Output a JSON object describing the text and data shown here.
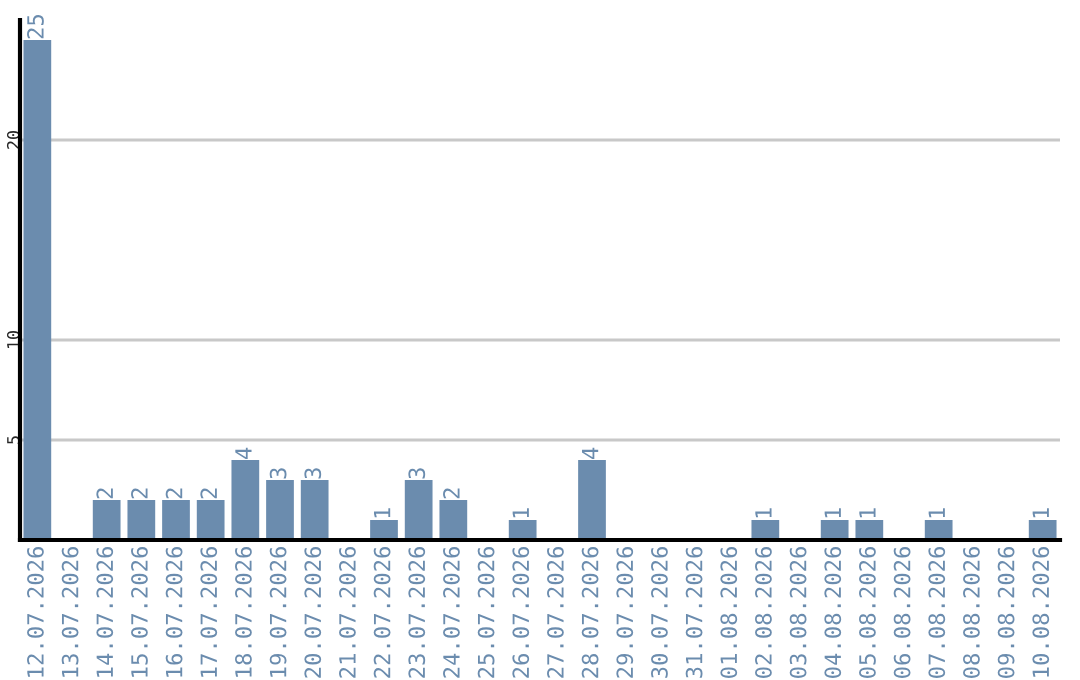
{
  "chart_data": {
    "type": "bar",
    "categories": [
      "12.07.2026",
      "13.07.2026",
      "14.07.2026",
      "15.07.2026",
      "16.07.2026",
      "17.07.2026",
      "18.07.2026",
      "19.07.2026",
      "20.07.2026",
      "21.07.2026",
      "22.07.2026",
      "23.07.2026",
      "24.07.2026",
      "25.07.2026",
      "26.07.2026",
      "27.07.2026",
      "28.07.2026",
      "29.07.2026",
      "30.07.2026",
      "31.07.2026",
      "01.08.2026",
      "02.08.2026",
      "03.08.2026",
      "04.08.2026",
      "05.08.2026",
      "06.08.2026",
      "07.08.2026",
      "08.08.2026",
      "09.08.2026",
      "10.08.2026"
    ],
    "values": [
      25,
      0,
      2,
      2,
      2,
      2,
      4,
      3,
      3,
      0,
      1,
      3,
      2,
      0,
      1,
      0,
      4,
      0,
      0,
      0,
      0,
      1,
      0,
      1,
      1,
      0,
      1,
      0,
      0,
      1
    ],
    "value_labels": [
      "25",
      null,
      "2",
      "2",
      "2",
      "2",
      "4",
      "3",
      "3",
      null,
      "1",
      "3",
      "2",
      null,
      "1",
      null,
      "4",
      null,
      null,
      null,
      null,
      "1",
      null,
      "1",
      "1",
      null,
      "1",
      null,
      null,
      "1"
    ],
    "color": "#6b8cae",
    "ylim": [
      0,
      26
    ],
    "yticks": [
      5,
      10,
      20
    ],
    "grid": "y",
    "legend": false
  }
}
